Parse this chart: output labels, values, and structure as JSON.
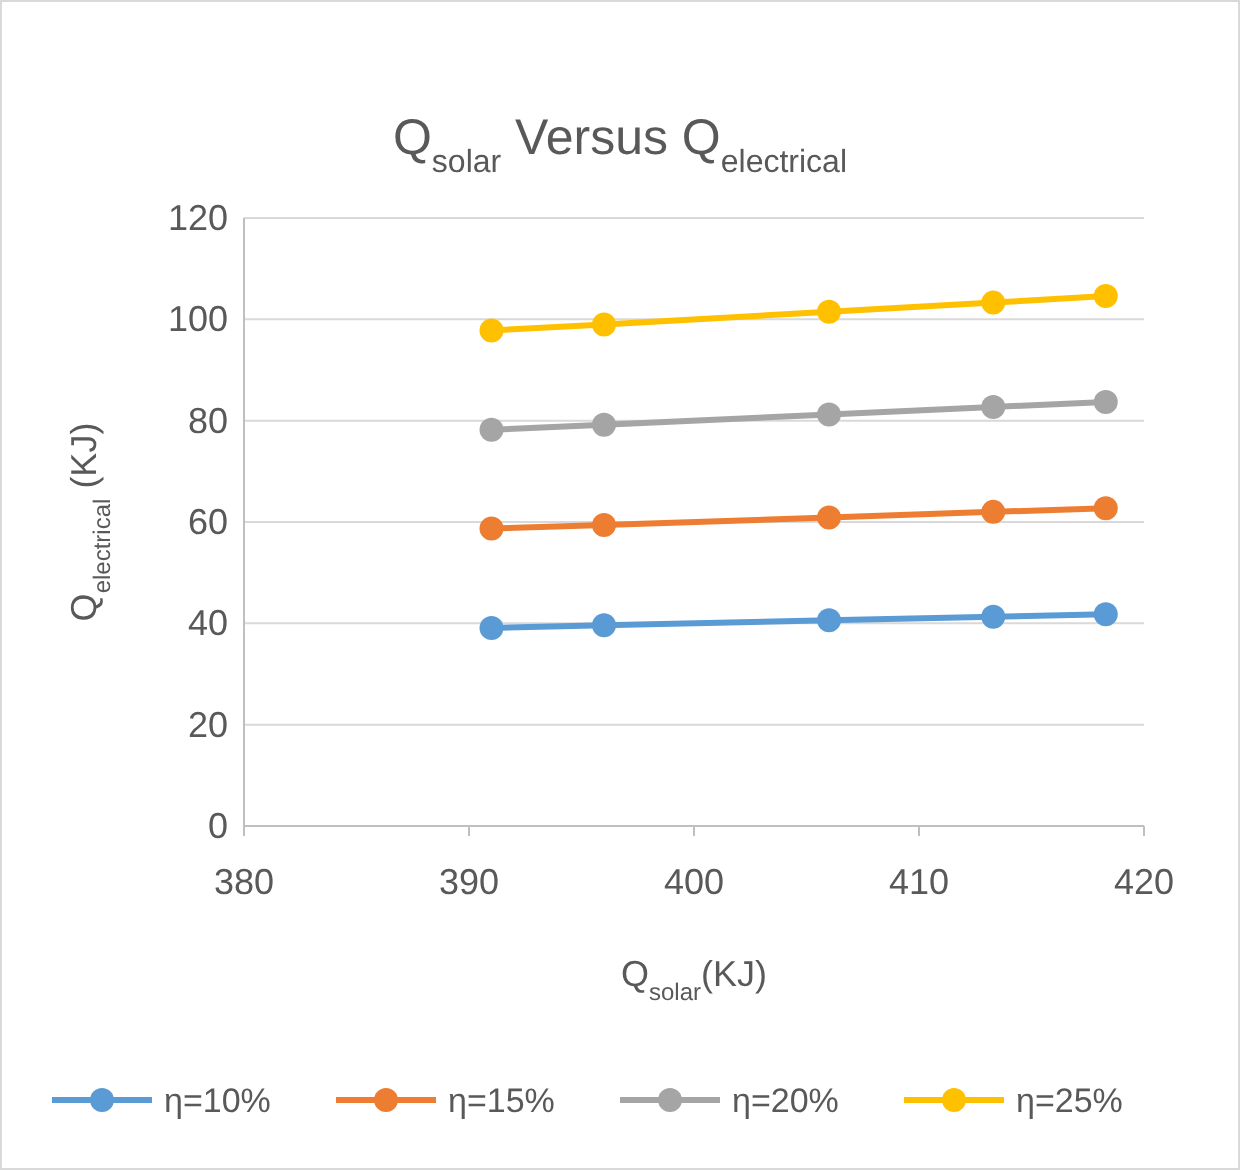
{
  "chart_data": {
    "type": "line",
    "title": "Q$_{solar}$ Versus Q$_{electrical}$",
    "xlabel": "Q$_{solar}$(KJ)",
    "ylabel": "Q$_{electrical}$ (KJ)",
    "x": [
      391,
      396,
      406,
      413.3,
      418.3
    ],
    "series": [
      {
        "name": "η=10%",
        "color": "#5b9bd5",
        "values": [
          39.1,
          39.6,
          40.6,
          41.3,
          41.8
        ]
      },
      {
        "name": "η=15%",
        "color": "#ed7d31",
        "values": [
          58.7,
          59.4,
          60.9,
          62.0,
          62.7
        ]
      },
      {
        "name": "η=20%",
        "color": "#a5a5a5",
        "values": [
          78.2,
          79.2,
          81.2,
          82.7,
          83.7
        ]
      },
      {
        "name": "η=25%",
        "color": "#ffc000",
        "values": [
          97.8,
          99.0,
          101.5,
          103.3,
          104.6
        ]
      }
    ],
    "xlim": [
      380,
      420
    ],
    "xticks": [
      380,
      390,
      400,
      410,
      420
    ],
    "ylim": [
      0,
      120
    ],
    "yticks": [
      0,
      20,
      40,
      60,
      80,
      100,
      120
    ],
    "grid": "y",
    "legend": "bottom",
    "marker": "circle",
    "line_style": "solid"
  }
}
